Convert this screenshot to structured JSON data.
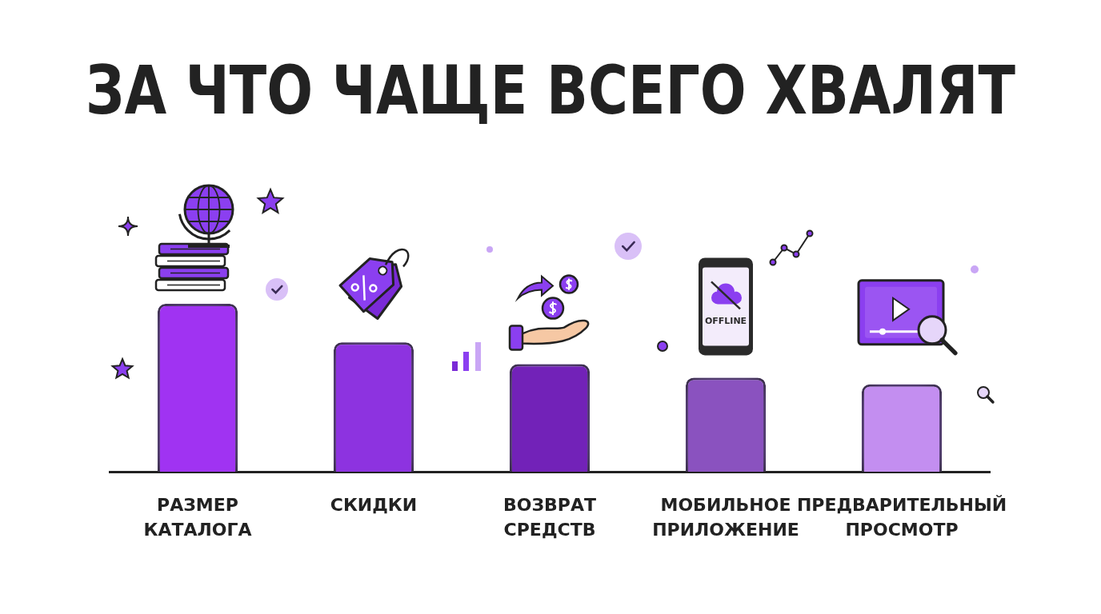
{
  "chart_data": {
    "type": "bar",
    "title": "ЗА ЧТО ЧАЩЕ ВСЕГО ХВАЛЯТ",
    "categories": [
      "РАЗМЕР КАТАЛОГА",
      "СКИДКИ",
      "ВОЗВРАТ СРЕДСТВ",
      "МОБИЛЬНОЕ ПРИЛОЖЕНИЕ",
      "ПРЕДВАРИТЕЛЬНЫЙ ПРОСМОТР"
    ],
    "values": [
      100,
      77,
      64,
      56,
      52
    ],
    "colors": [
      "#a033f2",
      "#8d33e0",
      "#7222b8",
      "#8a52bf",
      "#c38ef0"
    ],
    "ylim": [
      0,
      100
    ],
    "grid": false,
    "tick_labels": "x",
    "annotations": [
      "OFFLINE"
    ]
  }
}
